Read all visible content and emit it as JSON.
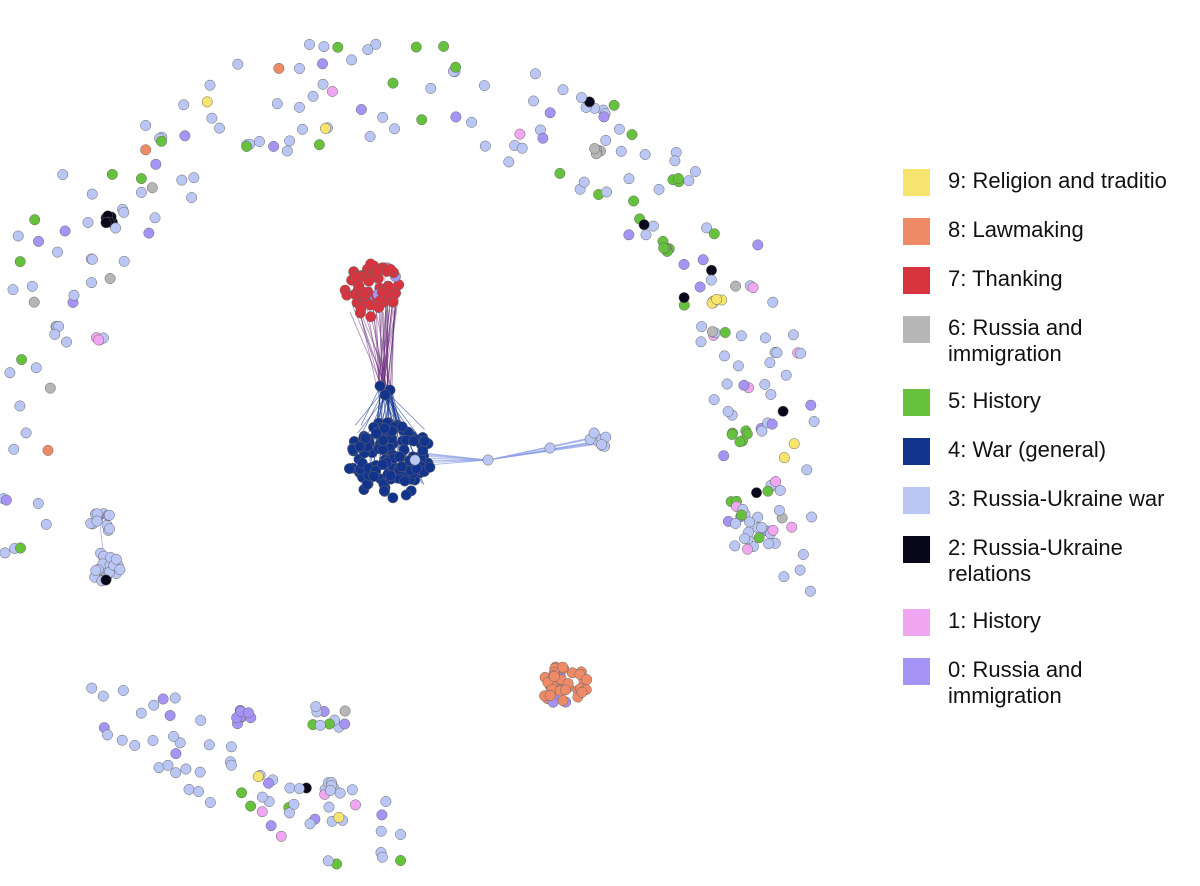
{
  "legend": {
    "items": [
      {
        "label": "9: Religion and traditio",
        "color": "#f6e46e"
      },
      {
        "label": "8: Lawmaking",
        "color": "#ee8b66"
      },
      {
        "label": "7: Thanking",
        "color": "#d8343f"
      },
      {
        "label": "6: Russia and\nimmigration",
        "color": "#b6b6b6"
      },
      {
        "label": "5: History",
        "color": "#66c13d"
      },
      {
        "label": "4: War (general)",
        "color": "#13348d"
      },
      {
        "label": "3: Russia-Ukraine war",
        "color": "#bac6f3"
      },
      {
        "label": "2: Russia-Ukraine\nrelations",
        "color": "#08081a"
      },
      {
        "label": "1: History",
        "color": "#f1a6f1"
      },
      {
        "label": "0: Russia and\nimmigration",
        "color": "#a594f5"
      }
    ]
  }
}
